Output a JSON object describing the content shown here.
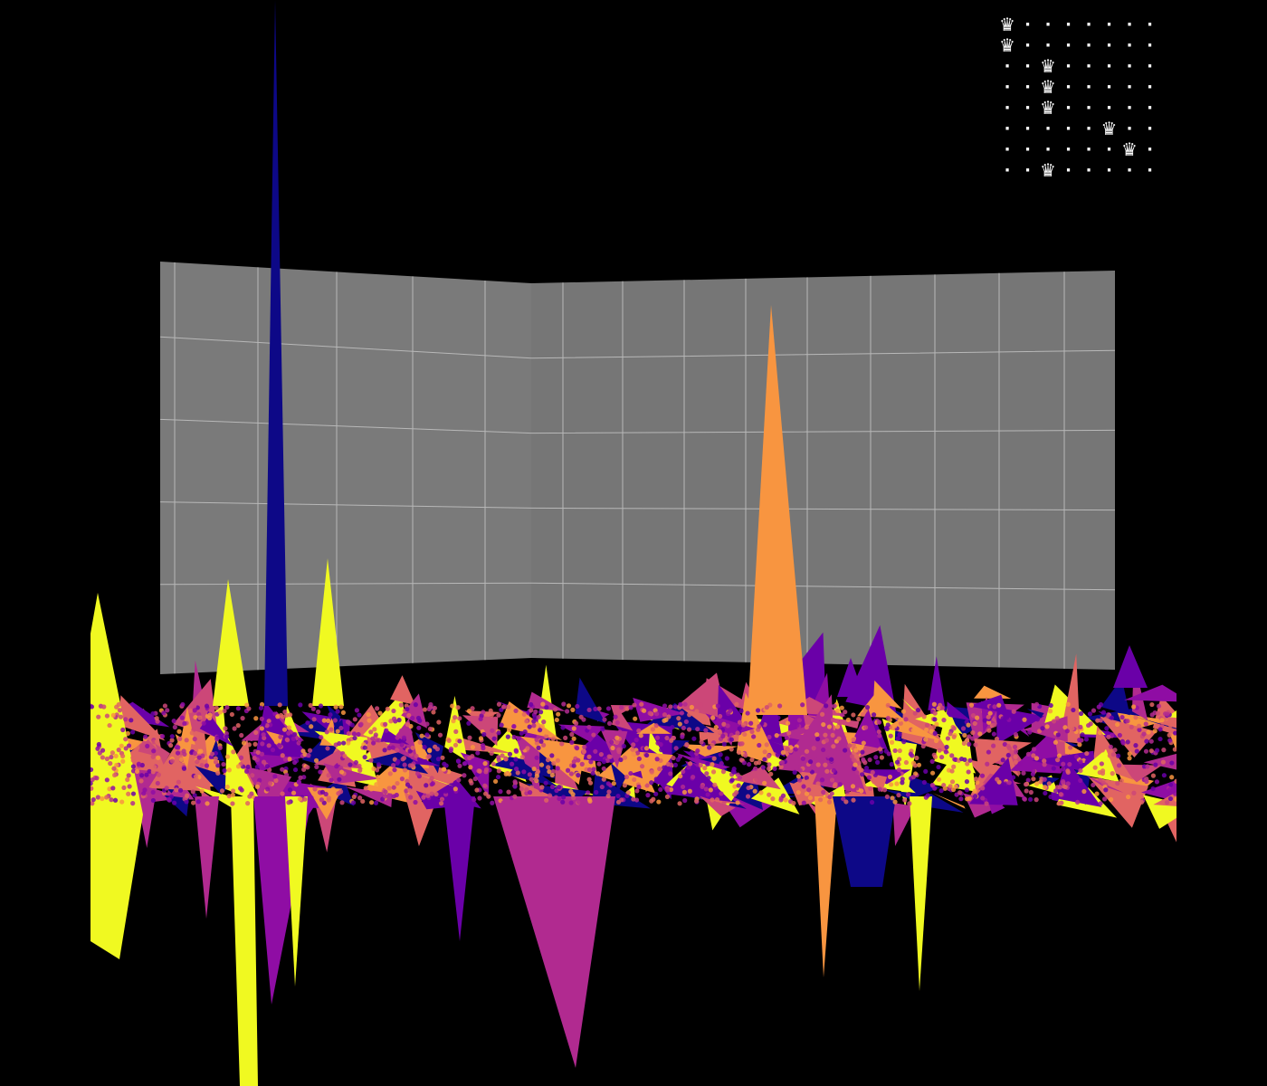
{
  "board": {
    "rows": [
      [
        "♛",
        "·",
        "·",
        "·",
        "·",
        "·",
        "·",
        "·"
      ],
      [
        "♛",
        "·",
        "·",
        "·",
        "·",
        "·",
        "·",
        "·"
      ],
      [
        "·",
        "·",
        "♛",
        "·",
        "·",
        "·",
        "·",
        "·"
      ],
      [
        "·",
        "·",
        "♛",
        "·",
        "·",
        "·",
        "·",
        "·"
      ],
      [
        "·",
        "·",
        "♛",
        "·",
        "·",
        "·",
        "·",
        "·"
      ],
      [
        "·",
        "·",
        "·",
        "·",
        "·",
        "♛",
        "·",
        "·"
      ],
      [
        "·",
        "·",
        "·",
        "·",
        "·",
        "·",
        "♛",
        "·"
      ],
      [
        "·",
        "·",
        "♛",
        "·",
        "·",
        "·",
        "·",
        "·"
      ]
    ]
  }
}
